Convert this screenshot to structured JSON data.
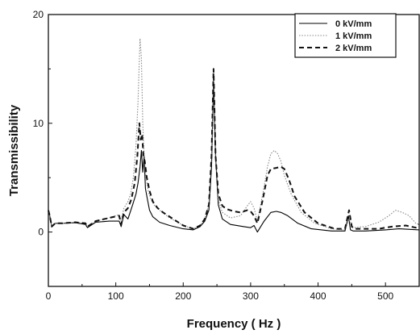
{
  "chart_data": {
    "type": "line",
    "title": "",
    "xlabel": "Frequency ( Hz )",
    "ylabel": "Transmissibility",
    "xlim": [
      0,
      550
    ],
    "ylim": [
      -5,
      20
    ],
    "xticks": [
      0,
      100,
      200,
      300,
      400,
      500
    ],
    "yticks": [
      0,
      10,
      20
    ],
    "xtick_labels": [
      "0",
      "100",
      "200",
      "300",
      "400",
      "500"
    ],
    "ytick_labels": [
      "0",
      "10",
      "20"
    ],
    "grid": false,
    "legend_position": "top-right",
    "series": [
      {
        "name": "0 kV/mm",
        "color": "#000000",
        "dash": "solid",
        "x": [
          0,
          2,
          5,
          10,
          20,
          40,
          55,
          58,
          70,
          90,
          105,
          108,
          112,
          118,
          125,
          130,
          133,
          136,
          138,
          140,
          142,
          144,
          147,
          150,
          155,
          165,
          180,
          200,
          215,
          225,
          232,
          238,
          242,
          245,
          248,
          252,
          258,
          270,
          290,
          300,
          305,
          310,
          320,
          330,
          338,
          345,
          355,
          370,
          390,
          420,
          440,
          445,
          448,
          452,
          470,
          500,
          520,
          550
        ],
        "y": [
          2.0,
          1.5,
          0.5,
          0.8,
          0.8,
          0.85,
          0.7,
          0.4,
          0.9,
          1.0,
          1.0,
          0.5,
          1.6,
          1.2,
          2.5,
          3.5,
          4.5,
          6.0,
          7.5,
          5.5,
          7.0,
          4.0,
          3.0,
          2.0,
          1.4,
          0.9,
          0.6,
          0.3,
          0.2,
          0.5,
          1.0,
          2.0,
          6.0,
          14.0,
          7.0,
          2.5,
          1.2,
          0.7,
          0.5,
          0.4,
          0.6,
          0.0,
          1.0,
          1.8,
          1.9,
          1.8,
          1.5,
          0.8,
          0.3,
          0.1,
          0.1,
          1.5,
          0.2,
          0.1,
          0.1,
          0.2,
          0.3,
          0.2
        ]
      },
      {
        "name": "1 kV/mm",
        "color": "#888888",
        "dash": "dot",
        "x": [
          0,
          2,
          5,
          10,
          20,
          40,
          55,
          58,
          70,
          90,
          105,
          108,
          112,
          118,
          122,
          126,
          130,
          133,
          136,
          138,
          140,
          142,
          145,
          148,
          152,
          158,
          165,
          180,
          200,
          215,
          225,
          232,
          238,
          242,
          245,
          248,
          252,
          258,
          270,
          285,
          295,
          300,
          305,
          310,
          318,
          325,
          330,
          335,
          340,
          345,
          350,
          360,
          375,
          395,
          420,
          440,
          446,
          452,
          470,
          490,
          505,
          515,
          525,
          535,
          545,
          550
        ],
        "y": [
          2.0,
          1.5,
          0.5,
          0.8,
          0.8,
          0.9,
          0.8,
          0.5,
          1.0,
          1.3,
          1.6,
          1.0,
          2.2,
          2.8,
          3.5,
          5.0,
          8.0,
          12.0,
          17.8,
          16.0,
          10.0,
          7.0,
          5.0,
          3.8,
          3.0,
          2.4,
          2.0,
          1.3,
          0.6,
          0.3,
          0.6,
          1.2,
          2.5,
          7.0,
          14.5,
          7.5,
          3.0,
          1.8,
          1.3,
          1.5,
          2.4,
          2.8,
          2.2,
          1.0,
          3.5,
          6.0,
          7.2,
          7.5,
          7.2,
          6.5,
          5.2,
          3.5,
          1.8,
          0.8,
          0.3,
          0.2,
          1.2,
          0.4,
          0.5,
          0.9,
          1.5,
          2.0,
          1.8,
          1.5,
          0.8,
          0.7
        ]
      },
      {
        "name": "2 kV/mm",
        "color": "#111111",
        "dash": "dash",
        "x": [
          0,
          2,
          5,
          10,
          20,
          40,
          55,
          58,
          70,
          90,
          105,
          108,
          112,
          118,
          123,
          128,
          132,
          135,
          137,
          139,
          141,
          143,
          146,
          150,
          155,
          162,
          170,
          185,
          200,
          215,
          225,
          232,
          238,
          242,
          245,
          248,
          252,
          258,
          265,
          275,
          285,
          295,
          300,
          305,
          310,
          318,
          325,
          330,
          338,
          345,
          350,
          357,
          365,
          380,
          400,
          425,
          440,
          446,
          450,
          455,
          470,
          490,
          510,
          530,
          545,
          550
        ],
        "y": [
          2.0,
          1.5,
          0.5,
          0.8,
          0.8,
          0.9,
          0.8,
          0.5,
          1.0,
          1.3,
          1.5,
          0.7,
          1.8,
          2.2,
          3.0,
          4.5,
          7.0,
          10.0,
          8.5,
          9.0,
          7.0,
          6.5,
          5.0,
          3.8,
          2.8,
          2.2,
          1.8,
          1.2,
          0.6,
          0.3,
          0.6,
          1.2,
          2.5,
          7.0,
          15.0,
          7.0,
          3.5,
          2.4,
          2.1,
          1.9,
          1.8,
          2.0,
          1.9,
          1.5,
          0.8,
          3.0,
          5.2,
          5.8,
          5.9,
          6.0,
          5.8,
          4.8,
          3.3,
          1.8,
          0.8,
          0.3,
          0.3,
          2.0,
          0.5,
          0.3,
          0.3,
          0.3,
          0.5,
          0.6,
          0.4,
          0.7
        ]
      }
    ]
  }
}
